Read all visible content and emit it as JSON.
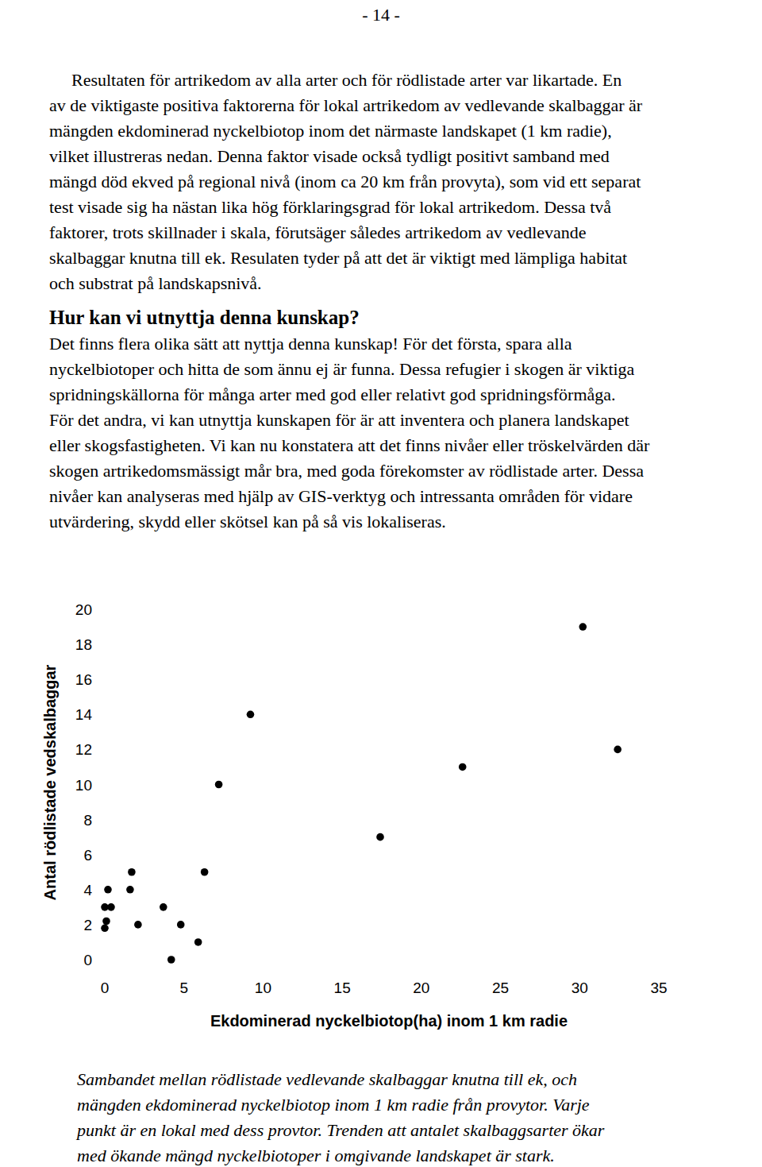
{
  "page_number": "- 14 -",
  "intro": [
    "Resultaten för artrikedom av alla arter och för rödlistade arter var likartade. En",
    "av de viktigaste positiva faktorerna för lokal artrikedom av vedlevande skalbaggar är",
    "mängden ekdominerad nyckelbiotop inom det närmaste landskapet (1 km radie),",
    "vilket illustreras nedan. Denna faktor visade också tydligt positivt samband med",
    "mängd död ekved på regional nivå (inom ca 20 km från provyta), som vid ett separat",
    "test visade sig ha nästan lika hög förklaringsgrad för lokal artrikedom. Dessa två",
    "faktorer, trots skillnader i skala, förutsäger således artrikedom av vedlevande",
    "skalbaggar knutna till ek. Resulaten tyder på att det är viktigt med lämpliga habitat",
    "och substrat på landskapsnivå."
  ],
  "heading": "Hur kan vi utnyttja denna kunskap?",
  "section": [
    "Det finns flera olika sätt att nyttja denna kunskap! För det första, spara alla",
    "nyckelbiotoper och hitta de som ännu ej är funna. Dessa refugier i skogen är viktiga",
    "spridningskällorna för många arter med god eller relativt god spridningsförmåga.",
    "För det andra, vi kan utnyttja kunskapen för är att inventera och planera landskapet",
    "eller skogsfastigheten. Vi kan nu konstatera att det finns nivåer eller tröskelvärden där",
    "skogen artrikedomsmässigt mår bra, med goda förekomster av rödlistade arter. Dessa",
    "nivåer kan analyseras med hjälp av GIS-verktyg och intressanta områden för vidare",
    "utvärdering, skydd eller skötsel kan på så vis lokaliseras."
  ],
  "chart_data": {
    "type": "scatter",
    "x_label": "Ekdominerad nyckelbiotop(ha) inom 1 km radie",
    "y_label": "Antal rödlistade vedskalbaggar",
    "x": [
      30.2,
      32.4,
      22.6,
      17.4,
      9.2,
      7.2,
      6.3,
      5.9,
      4.8,
      4.2,
      3.7,
      2.1,
      1.6,
      1.7,
      0.4,
      0.2,
      0.0,
      0.1,
      0.0
    ],
    "values": [
      19,
      12,
      11,
      7,
      14,
      10,
      5,
      1,
      2,
      0,
      3,
      2,
      4,
      5,
      3,
      4,
      3,
      2.2,
      1.8
    ],
    "xlim": [
      0,
      35
    ],
    "ylim": [
      0,
      20
    ],
    "xticks": [
      0,
      5,
      10,
      15,
      20,
      25,
      30,
      35
    ],
    "yticks": [
      0,
      2,
      4,
      6,
      8,
      10,
      12,
      14,
      16,
      18,
      20
    ],
    "color": "#000000",
    "marker": "circle",
    "grid": false
  },
  "caption": [
    "Sambandet mellan rödlistade vedlevande skalbaggar knutna till ek, och",
    "mängden ekdominerad nyckelbiotop inom 1 km radie från provytor. Varje",
    "punkt är en lokal med dess provtor. Trenden att antalet skalbaggsarter ökar",
    "med ökande mängd nyckelbiotoper i omgivande landskapet är stark."
  ]
}
